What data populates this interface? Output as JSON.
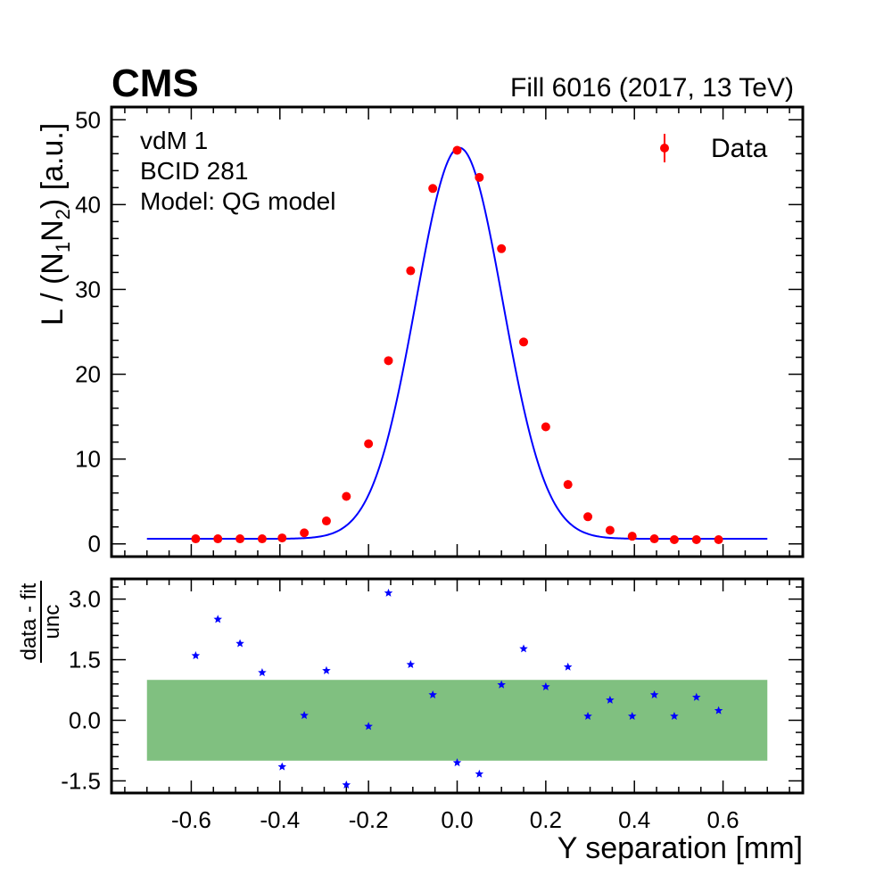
{
  "header": {
    "experiment": "CMS",
    "fill_label": "Fill 6016 (2017, 13 TeV)"
  },
  "annotations": [
    "vdM 1",
    "BCID 281",
    "Model: QG model"
  ],
  "legend": {
    "label": "Data",
    "placement": "top-right"
  },
  "colors": {
    "data": "#ff0000",
    "fit": "#0000ff",
    "residual": "#0000ff",
    "band": "#80c080",
    "axis": "#000000"
  },
  "chart_data": [
    {
      "type": "scatter",
      "panel": "main",
      "ylabel": "L / (N1N2) [a.u.]",
      "ylabel_parts": {
        "prefix": "L / (N",
        "sub1": "1",
        "mid": "N",
        "sub2": "2",
        "suffix": ") [a.u.]"
      },
      "xlim": [
        -0.78,
        0.78
      ],
      "ylim": [
        -1.5,
        51.5
      ],
      "y_ticks": [
        0,
        10,
        20,
        30,
        40,
        50
      ],
      "y_tick_labels": [
        "0",
        "10",
        "20",
        "30",
        "40",
        "50"
      ],
      "series": [
        {
          "name": "Data",
          "x": [
            -0.59,
            -0.54,
            -0.49,
            -0.44,
            -0.395,
            -0.345,
            -0.295,
            -0.25,
            -0.2,
            -0.155,
            -0.105,
            -0.055,
            0.0,
            0.05,
            0.1,
            0.15,
            0.2,
            0.25,
            0.295,
            0.345,
            0.395,
            0.445,
            0.49,
            0.54,
            0.59
          ],
          "y": [
            0.6,
            0.6,
            0.6,
            0.6,
            0.7,
            1.3,
            2.7,
            5.6,
            11.8,
            21.6,
            32.2,
            41.9,
            46.4,
            43.2,
            34.8,
            23.8,
            13.8,
            7.0,
            3.2,
            1.6,
            0.9,
            0.6,
            0.5,
            0.5,
            0.5
          ]
        }
      ],
      "fit": {
        "name": "QG model",
        "x_range": [
          -0.7,
          0.7
        ],
        "baseline": 0.6,
        "amplitude": 46.1,
        "mean": 0.005,
        "sigma": 0.098
      }
    },
    {
      "type": "scatter",
      "panel": "residual",
      "ylabel_numerator": "data - fit",
      "ylabel_denominator": "unc",
      "xlabel": "Y separation [mm]",
      "xlim": [
        -0.78,
        0.78
      ],
      "ylim": [
        -1.8,
        3.5
      ],
      "x_ticks": [
        -0.6,
        -0.4,
        -0.2,
        0.0,
        0.2,
        0.4,
        0.6
      ],
      "x_tick_labels": [
        "-0.6",
        "-0.4",
        "-0.2",
        "0.0",
        "0.2",
        "0.4",
        "0.6"
      ],
      "y_ticks": [
        -1.5,
        0.0,
        1.5,
        3.0
      ],
      "y_tick_labels": [
        "-1.5",
        "0.0",
        "1.5",
        "3.0"
      ],
      "band": {
        "x_range": [
          -0.7,
          0.7
        ],
        "y_range": [
          -1.0,
          1.0
        ]
      },
      "series": [
        {
          "x": [
            -0.59,
            -0.54,
            -0.49,
            -0.44,
            -0.395,
            -0.345,
            -0.295,
            -0.25,
            -0.2,
            -0.155,
            -0.105,
            -0.055,
            0.0,
            0.05,
            0.1,
            0.15,
            0.2,
            0.25,
            0.295,
            0.345,
            0.395,
            0.445,
            0.49,
            0.54,
            0.59
          ],
          "y": [
            1.6,
            2.5,
            1.9,
            1.18,
            -1.15,
            0.12,
            1.23,
            -1.6,
            -0.15,
            3.15,
            1.38,
            0.63,
            -1.05,
            -1.33,
            0.88,
            1.77,
            0.83,
            1.32,
            0.1,
            0.5,
            0.1,
            0.63,
            0.1,
            0.57,
            0.24
          ]
        }
      ]
    }
  ]
}
